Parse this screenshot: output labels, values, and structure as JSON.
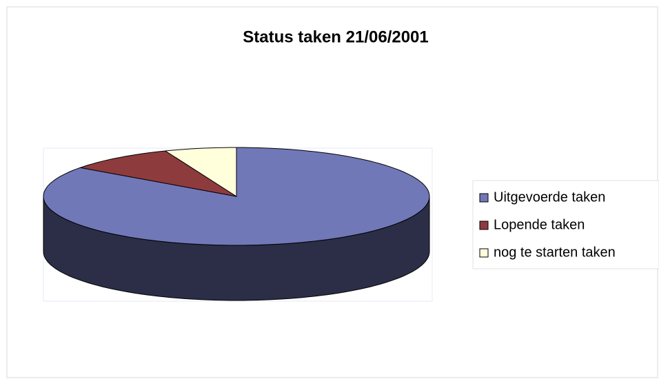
{
  "chart_data": {
    "type": "pie3d",
    "title": "Status taken 21/06/2001",
    "categories": [
      "Uitgevoerde taken",
      "Lopende taken",
      "nog te starten taken"
    ],
    "values": [
      85,
      9,
      6
    ],
    "colors": [
      "#7178b8",
      "#8e3b3e",
      "#ffffdc"
    ]
  }
}
